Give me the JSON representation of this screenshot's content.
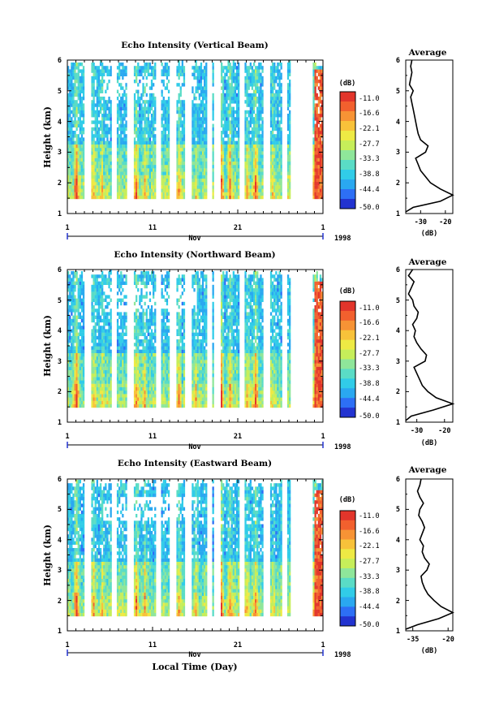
{
  "figure": {
    "year_label": "1998",
    "month_label": "Nov",
    "xlabel": "Local Time (Day)",
    "colorbar_unit": "(dB)",
    "colorbar_ticks": [
      "-11.0",
      "-16.6",
      "-22.1",
      "-27.7",
      "-33.3",
      "-38.8",
      "-44.4",
      "-50.0"
    ],
    "colors": [
      "#3a3a9a",
      "#2233d0",
      "#2d6ff5",
      "#2aa8f0",
      "#31cce8",
      "#5adcc6",
      "#8fe69a",
      "#c6ee5a",
      "#eeea44",
      "#f8c23a",
      "#f79335",
      "#f2602e",
      "#e2352b"
    ]
  },
  "chart_data": [
    {
      "type": "heatmap",
      "title": "Echo Intensity (Vertical Beam)",
      "ylabel": "Height (km)",
      "ylim": [
        1,
        6
      ],
      "yticks": [
        "1",
        "2",
        "3",
        "4",
        "5",
        "6"
      ],
      "xlim": [
        1,
        31
      ],
      "xticks": [
        "1",
        "11",
        "21",
        "1"
      ],
      "profile": {
        "title": "Average",
        "xlabel": "(dB)",
        "xticks": [
          "-30",
          "-20"
        ],
        "xlim": [
          -36,
          -17
        ],
        "heights": [
          1.2,
          1.4,
          1.6,
          1.8,
          2.0,
          2.2,
          2.4,
          2.6,
          2.8,
          3.0,
          3.2,
          3.4,
          3.6,
          3.8,
          4.0,
          4.2,
          4.4,
          4.6,
          4.8,
          5.0,
          5.2,
          5.4,
          5.6,
          5.8,
          6.0
        ],
        "values": [
          -33,
          -22,
          -17,
          -22,
          -26,
          -28,
          -30,
          -31,
          -32,
          -28,
          -27,
          -30,
          -31,
          -31.5,
          -32,
          -32.5,
          -33,
          -33.5,
          -34,
          -33,
          -34.5,
          -34,
          -33.5,
          -34,
          -33.5
        ]
      }
    },
    {
      "type": "heatmap",
      "title": "Echo Intensity (Northward Beam)",
      "ylabel": "Height (km)",
      "ylim": [
        1,
        6
      ],
      "yticks": [
        "1",
        "2",
        "3",
        "4",
        "5",
        "6"
      ],
      "xlim": [
        1,
        31
      ],
      "xticks": [
        "1",
        "11",
        "21",
        "1"
      ],
      "profile": {
        "title": "Average",
        "xlabel": "(dB)",
        "xticks": [
          "-30",
          "-20"
        ],
        "xlim": [
          -34,
          -17
        ],
        "heights": [
          1.2,
          1.4,
          1.6,
          1.8,
          2.0,
          2.2,
          2.4,
          2.6,
          2.8,
          3.0,
          3.2,
          3.4,
          3.6,
          3.8,
          4.0,
          4.2,
          4.4,
          4.6,
          4.8,
          5.0,
          5.2,
          5.4,
          5.6,
          5.8,
          6.0
        ],
        "values": [
          -32,
          -24,
          -17,
          -23,
          -26,
          -28,
          -29,
          -30,
          -31,
          -27,
          -26.5,
          -28.5,
          -30,
          -31,
          -30.5,
          -31.5,
          -30,
          -29.5,
          -31,
          -31.5,
          -33,
          -32,
          -31,
          -33,
          -31.5
        ]
      }
    },
    {
      "type": "heatmap",
      "title": "Echo Intensity (Eastward Beam)",
      "ylabel": "Height (km)",
      "ylim": [
        1,
        6
      ],
      "yticks": [
        "1",
        "2",
        "3",
        "4",
        "5",
        "6"
      ],
      "xlim": [
        1,
        31
      ],
      "xticks": [
        "1",
        "11",
        "21",
        "1"
      ],
      "profile": {
        "title": "Average",
        "xlabel": "(dB)",
        "xticks": [
          "-35",
          "-20"
        ],
        "xlim": [
          -38,
          -18
        ],
        "heights": [
          1.2,
          1.4,
          1.6,
          1.8,
          2.0,
          2.2,
          2.4,
          2.6,
          2.8,
          3.0,
          3.2,
          3.4,
          3.6,
          3.8,
          4.0,
          4.2,
          4.4,
          4.6,
          4.8,
          5.0,
          5.2,
          5.4,
          5.6,
          5.8,
          6.0
        ],
        "values": [
          -33,
          -24,
          -18,
          -23,
          -26,
          -28.5,
          -30,
          -31,
          -31.5,
          -29,
          -28,
          -30,
          -31,
          -30.5,
          -32,
          -31,
          -30,
          -31,
          -32.5,
          -32,
          -30.5,
          -32,
          -33,
          -32,
          -31.5
        ]
      }
    }
  ]
}
